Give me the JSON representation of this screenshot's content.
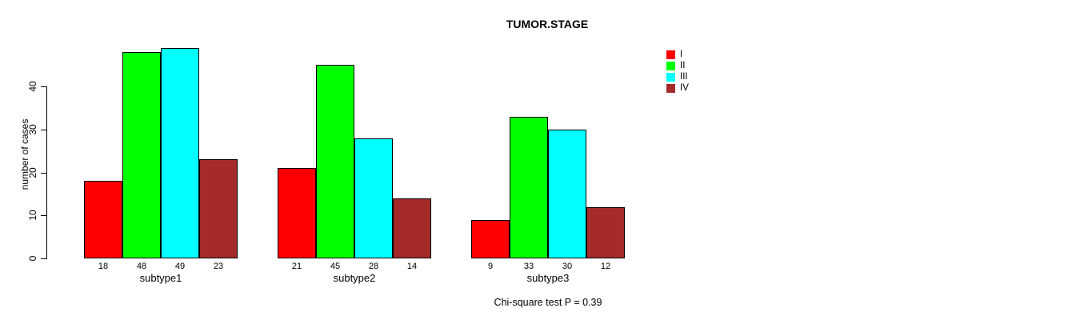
{
  "page": {
    "background": "#ffffff",
    "text_color": "#000000"
  },
  "chart_data": {
    "type": "bar",
    "title": "TUMOR.STAGE",
    "xlabel": "",
    "ylabel": "number of cases",
    "categories": [
      "subtype1",
      "subtype2",
      "subtype3"
    ],
    "series": [
      {
        "name": "I",
        "color": "#FF0000",
        "values": [
          18,
          21,
          9
        ]
      },
      {
        "name": "II",
        "color": "#00FF00",
        "values": [
          48,
          45,
          33
        ]
      },
      {
        "name": "III",
        "color": "#00FFFF",
        "values": [
          49,
          28,
          30
        ]
      },
      {
        "name": "IV",
        "color": "#A52A2A",
        "values": [
          23,
          14,
          12
        ]
      }
    ],
    "bar_value_labels": [
      [
        18,
        48,
        49,
        23
      ],
      [
        21,
        45,
        28,
        14
      ],
      [
        9,
        33,
        30,
        12
      ]
    ],
    "yticks": [
      0,
      10,
      20,
      30,
      40
    ],
    "ylim": [
      0,
      49
    ],
    "grid": false,
    "legend_position": "top-right",
    "footnote": "Chi-square test P = 0.39"
  }
}
